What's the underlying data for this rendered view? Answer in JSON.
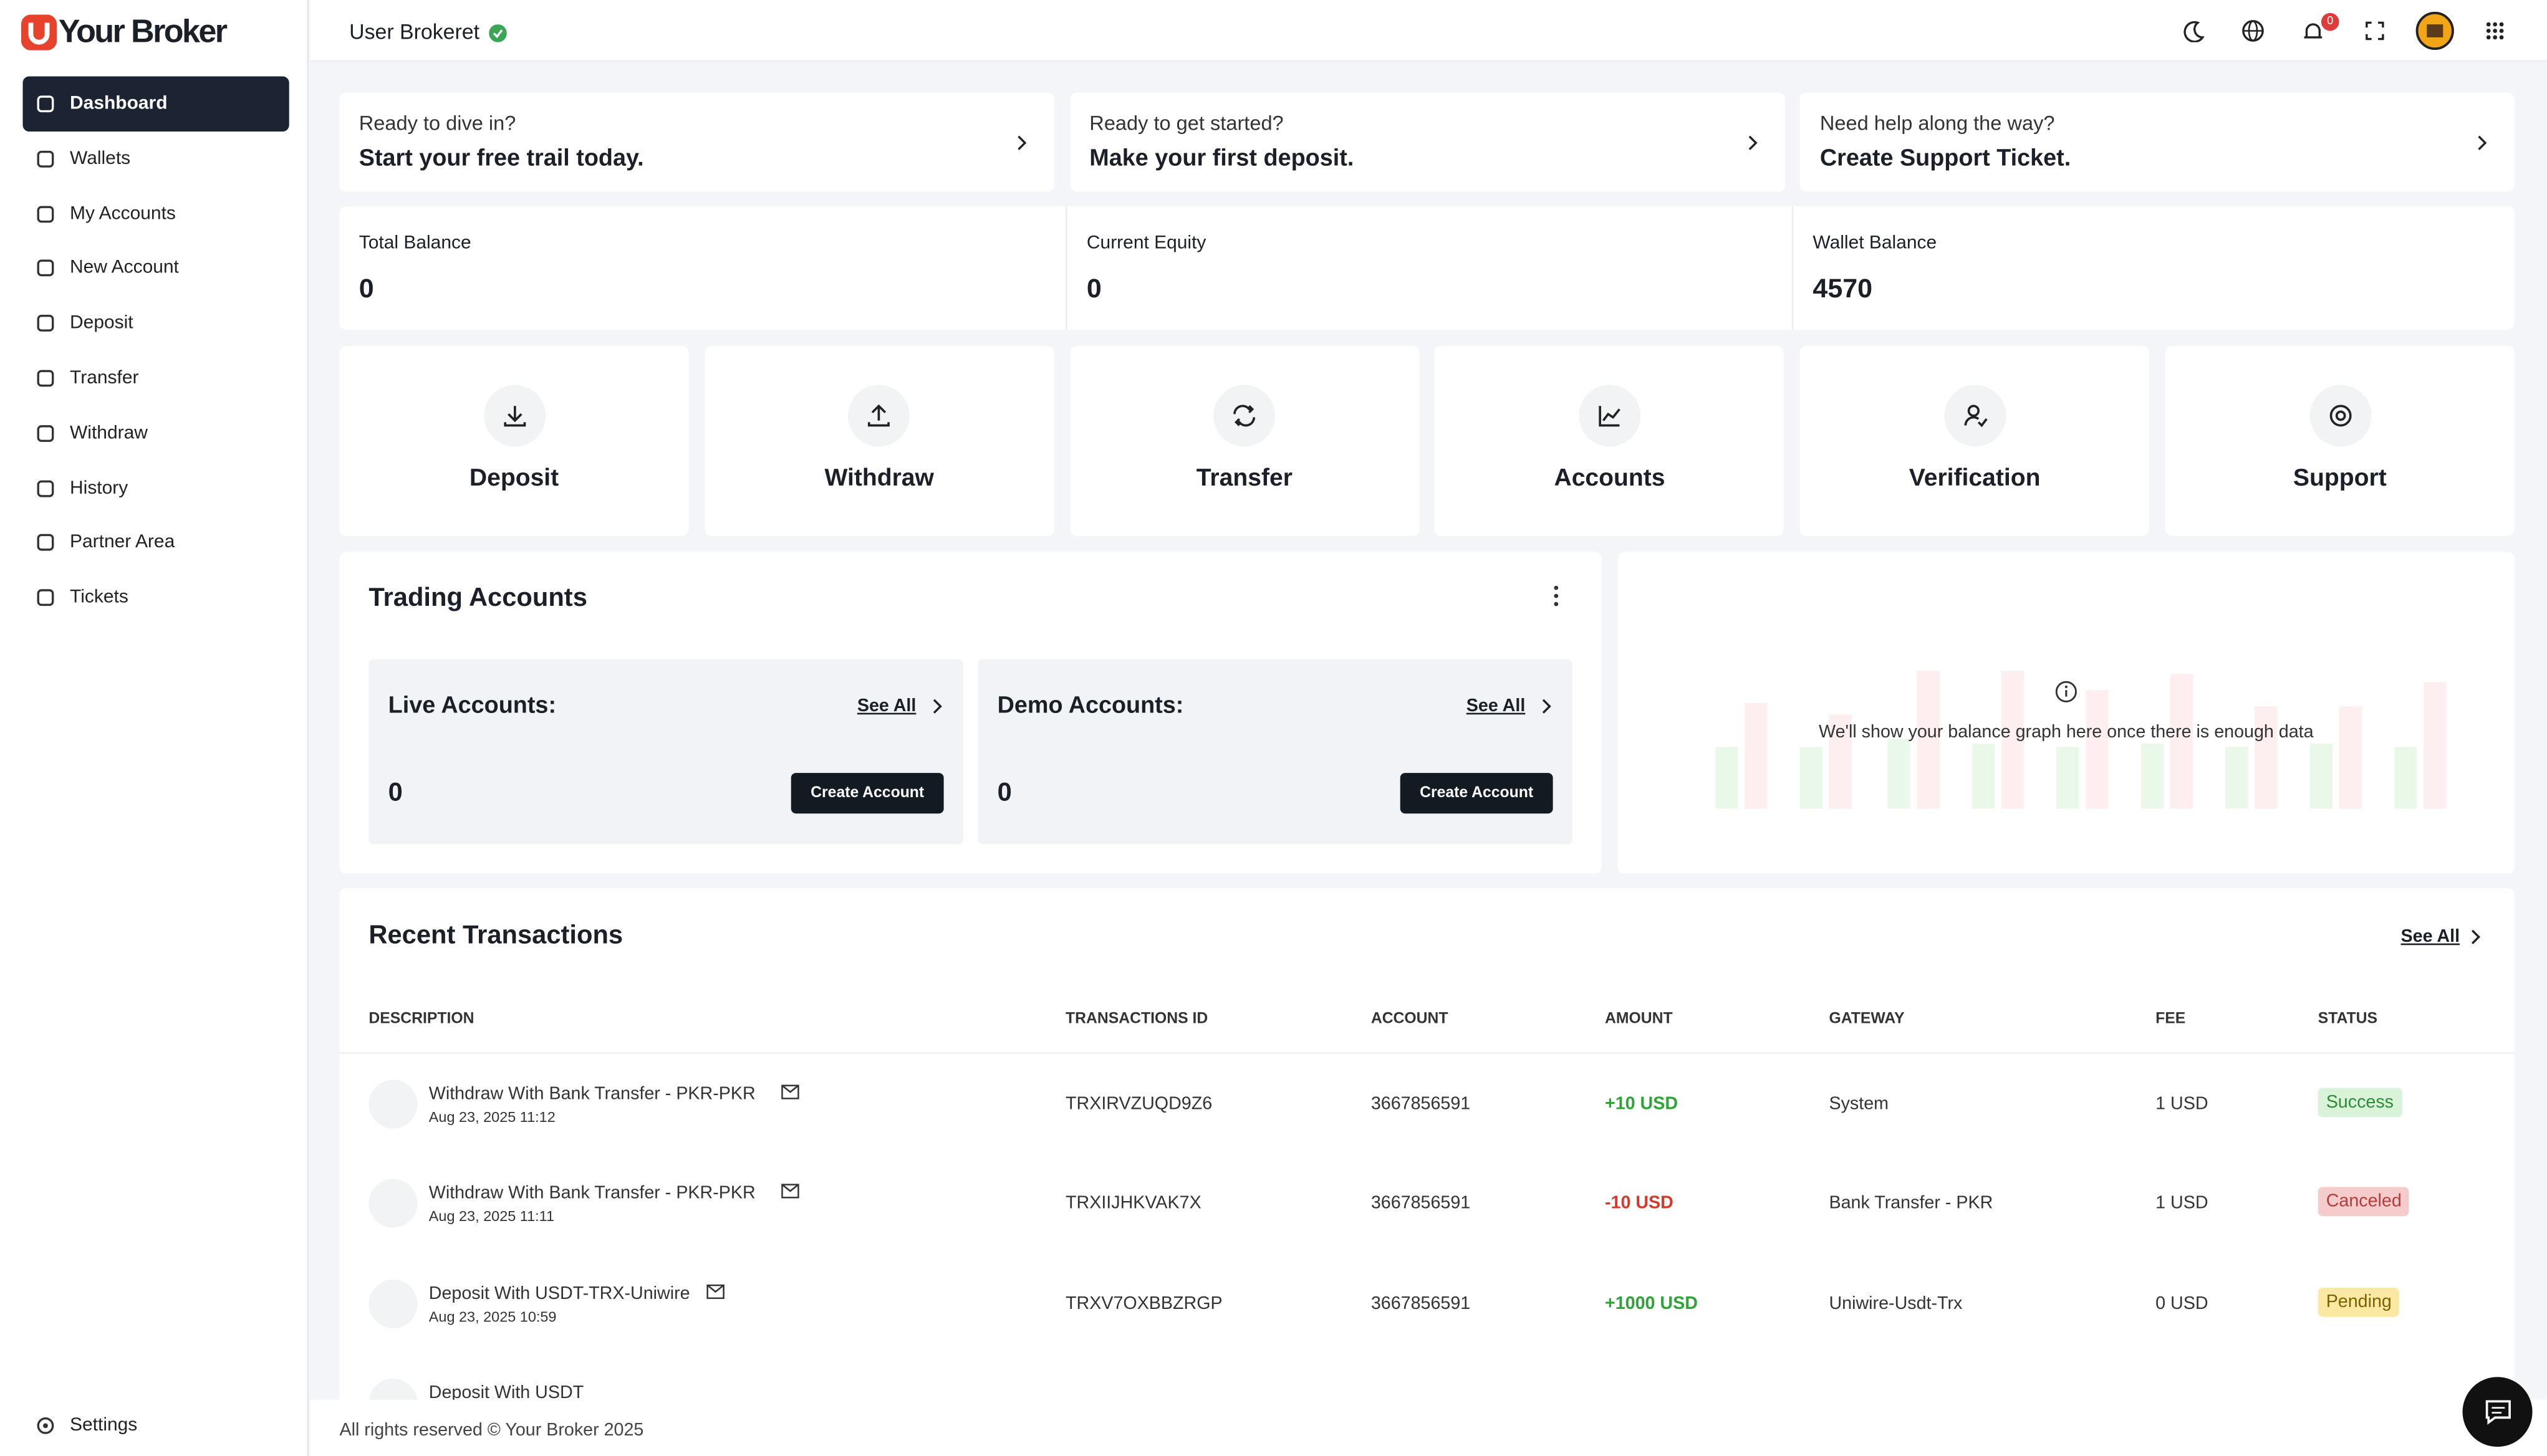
{
  "brand": "Your Broker",
  "nav": [
    "Dashboard",
    "Wallets",
    "My Accounts",
    "New Account",
    "Deposit",
    "Transfer",
    "Withdraw",
    "History",
    "Partner Area",
    "Tickets"
  ],
  "settings": "Settings",
  "header": {
    "user": "User Brokeret",
    "notifications": 0
  },
  "promos": [
    {
      "line1": "Ready to dive in?",
      "line2": "Start your free trail today."
    },
    {
      "line1": "Ready to get started?",
      "line2": "Make your first deposit."
    },
    {
      "line1": "Need help along the way?",
      "line2": "Create Support Ticket."
    }
  ],
  "balances": [
    {
      "label": "Total Balance",
      "value": 0
    },
    {
      "label": "Current Equity",
      "value": 0
    },
    {
      "label": "Wallet Balance",
      "value": 4570
    }
  ],
  "actions": [
    "Deposit",
    "Withdraw",
    "Transfer",
    "Accounts",
    "Verification",
    "Support"
  ],
  "trading": {
    "title": "Trading Accounts",
    "live": {
      "label": "Live Accounts:",
      "see_all": "See All",
      "count": 0,
      "button": "Create Account"
    },
    "demo": {
      "label": "Demo Accounts:",
      "see_all": "See All",
      "count": 0,
      "button": "Create Account"
    }
  },
  "graph_message": "We'll show your balance graph here once there is enough data",
  "transactions": {
    "title": "Recent Transactions",
    "see_all": "See All",
    "columns": [
      "DESCRIPTION",
      "TRANSACTIONS ID",
      "ACCOUNT",
      "AMOUNT",
      "GATEWAY",
      "FEE",
      "STATUS"
    ],
    "rows": [
      {
        "description": "Withdraw With Bank Transfer - PKR-PKR",
        "date": "Aug 23, 2025 11:12",
        "id": "TRXIRVZUQD9Z6",
        "account": "3667856591",
        "amount": "+10 USD",
        "gateway": "System",
        "fee": "1 USD",
        "status": "Success"
      },
      {
        "description": "Withdraw With Bank Transfer - PKR-PKR",
        "date": "Aug 23, 2025 11:11",
        "id": "TRXIIJHKVAK7X",
        "account": "3667856591",
        "amount": "-10 USD",
        "gateway": "Bank Transfer - PKR",
        "fee": "1 USD",
        "status": "Canceled"
      },
      {
        "description": "Deposit With USDT-TRX-Uniwire",
        "date": "Aug 23, 2025 10:59",
        "id": "TRXV7OXBBZRGP",
        "account": "3667856591",
        "amount": "+1000 USD",
        "gateway": "Uniwire-Usdt-Trx",
        "fee": "0 USD",
        "status": "Pending"
      },
      {
        "description": "Deposit With USDT"
      }
    ]
  },
  "footer": "All rights reserved © Your Broker 2025"
}
